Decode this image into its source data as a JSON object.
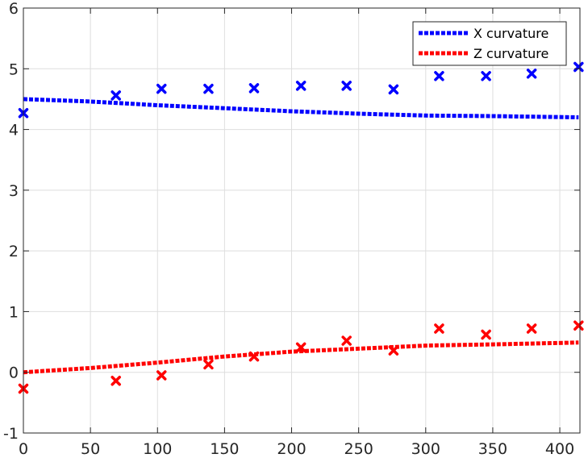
{
  "chart_data": {
    "type": "scatter",
    "title": "",
    "xlabel": "",
    "ylabel": "",
    "xlim": [
      0,
      415
    ],
    "ylim": [
      -1,
      6
    ],
    "x_ticks": [
      0,
      50,
      100,
      150,
      200,
      250,
      300,
      350,
      400
    ],
    "y_ticks": [
      -1,
      0,
      1,
      2,
      3,
      4,
      5,
      6
    ],
    "grid": true,
    "legend_position": "top-right",
    "scatter_series": [
      {
        "color": "#0000ff",
        "marker": "x",
        "points": [
          [
            0,
            4.27
          ],
          [
            69,
            4.56
          ],
          [
            103,
            4.67
          ],
          [
            138,
            4.67
          ],
          [
            172,
            4.68
          ],
          [
            207,
            4.72
          ],
          [
            241,
            4.72
          ],
          [
            276,
            4.66
          ],
          [
            310,
            4.88
          ],
          [
            345,
            4.88
          ],
          [
            379,
            4.92
          ],
          [
            414,
            5.03
          ]
        ]
      },
      {
        "color": "#ff0000",
        "marker": "x",
        "points": [
          [
            0,
            -0.27
          ],
          [
            69,
            -0.14
          ],
          [
            103,
            -0.05
          ],
          [
            138,
            0.13
          ],
          [
            172,
            0.26
          ],
          [
            207,
            0.41
          ],
          [
            241,
            0.52
          ],
          [
            276,
            0.36
          ],
          [
            310,
            0.72
          ],
          [
            345,
            0.62
          ],
          [
            379,
            0.72
          ],
          [
            414,
            0.77
          ]
        ]
      }
    ],
    "line_series": [
      {
        "name": "X curvature",
        "color": "#0000ff",
        "style": "dotted",
        "points": [
          [
            0,
            4.5
          ],
          [
            50,
            4.46
          ],
          [
            100,
            4.4
          ],
          [
            150,
            4.35
          ],
          [
            200,
            4.3
          ],
          [
            250,
            4.26
          ],
          [
            300,
            4.23
          ],
          [
            350,
            4.22
          ],
          [
            414,
            4.2
          ]
        ]
      },
      {
        "name": "Z curvature",
        "color": "#ff0000",
        "style": "dotted",
        "points": [
          [
            0,
            0.0
          ],
          [
            50,
            0.07
          ],
          [
            100,
            0.16
          ],
          [
            150,
            0.26
          ],
          [
            200,
            0.34
          ],
          [
            250,
            0.39
          ],
          [
            300,
            0.44
          ],
          [
            350,
            0.46
          ],
          [
            414,
            0.49
          ]
        ]
      }
    ]
  }
}
